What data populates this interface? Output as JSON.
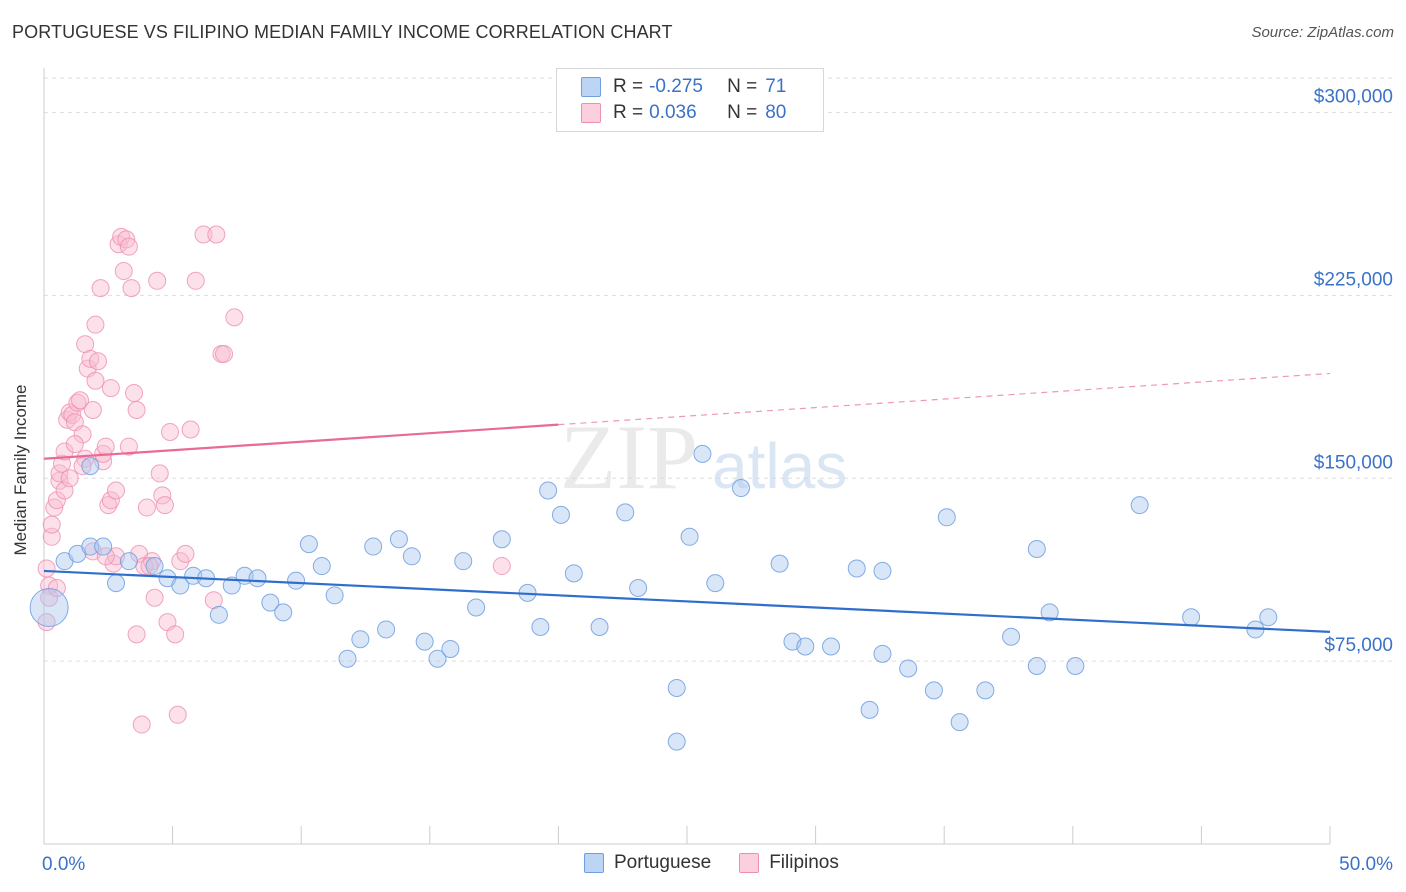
{
  "title": "PORTUGUESE VS FILIPINO MEDIAN FAMILY INCOME CORRELATION CHART",
  "source": "Source: ZipAtlas.com",
  "watermark": {
    "zip": "ZIP",
    "atlas": "atlas"
  },
  "colors": {
    "portuguese_fill": "#a8c8f0",
    "portuguese_stroke": "#6f9fe0",
    "portuguese_line": "#2f6fcc",
    "filipino_fill": "#f8bcd0",
    "filipino_stroke": "#ee8fb0",
    "filipino_line": "#e86a95",
    "axis_label": "#3a72c8",
    "grid": "#dddddd"
  },
  "legend": {
    "portuguese": {
      "r_label": "R =",
      "r_value": "-0.275",
      "n_label": "N =",
      "n_value": "71"
    },
    "filipino": {
      "r_label": "R =",
      "r_value": "0.036",
      "n_label": "N =",
      "n_value": "80"
    }
  },
  "chart_data": {
    "type": "scatter",
    "title": "PORTUGUESE VS FILIPINO MEDIAN FAMILY INCOME CORRELATION CHART",
    "xlabel": "",
    "ylabel": "Median Family Income",
    "xlim": [
      0,
      50
    ],
    "ylim": [
      0,
      315000
    ],
    "x_tick_labels": [
      "0.0%",
      "50.0%"
    ],
    "x_minor_ticks": [
      5,
      10,
      15,
      20,
      25,
      30,
      35,
      40,
      45
    ],
    "y_ticks": [
      {
        "value": 75000,
        "label": "$75,000"
      },
      {
        "value": 150000,
        "label": "$150,000"
      },
      {
        "value": 225000,
        "label": "$225,000"
      },
      {
        "value": 300000,
        "label": "$300,000"
      }
    ],
    "legend_position": "top-center",
    "series": [
      {
        "name": "Portuguese",
        "trend": {
          "x0": 0,
          "y0": 112000,
          "x1": 50,
          "y1": 87000,
          "dashed_from": null
        },
        "points": [
          [
            0.2,
            97000
          ],
          [
            0.8,
            116000
          ],
          [
            1.3,
            119000
          ],
          [
            1.8,
            122000
          ],
          [
            2.3,
            122000
          ],
          [
            2.8,
            107000
          ],
          [
            3.3,
            116000
          ],
          [
            4.3,
            114000
          ],
          [
            4.8,
            109000
          ],
          [
            5.3,
            106000
          ],
          [
            5.8,
            110000
          ],
          [
            6.3,
            109000
          ],
          [
            6.8,
            94000
          ],
          [
            7.3,
            106000
          ],
          [
            7.8,
            110000
          ],
          [
            8.3,
            109000
          ],
          [
            8.8,
            99000
          ],
          [
            9.3,
            95000
          ],
          [
            9.8,
            108000
          ],
          [
            10.3,
            123000
          ],
          [
            10.8,
            114000
          ],
          [
            11.3,
            102000
          ],
          [
            11.8,
            76000
          ],
          [
            12.3,
            84000
          ],
          [
            12.8,
            122000
          ],
          [
            13.3,
            88000
          ],
          [
            13.8,
            125000
          ],
          [
            14.3,
            118000
          ],
          [
            14.8,
            83000
          ],
          [
            15.3,
            76000
          ],
          [
            15.8,
            80000
          ],
          [
            16.3,
            116000
          ],
          [
            16.8,
            97000
          ],
          [
            17.8,
            125000
          ],
          [
            18.8,
            103000
          ],
          [
            19.3,
            89000
          ],
          [
            19.6,
            145000
          ],
          [
            20.1,
            135000
          ],
          [
            20.6,
            111000
          ],
          [
            21.6,
            89000
          ],
          [
            22.6,
            136000
          ],
          [
            23.1,
            105000
          ],
          [
            24.6,
            64000
          ],
          [
            24.6,
            42000
          ],
          [
            25.1,
            126000
          ],
          [
            25.6,
            160000
          ],
          [
            26.1,
            107000
          ],
          [
            27.1,
            146000
          ],
          [
            28.6,
            115000
          ],
          [
            29.1,
            83000
          ],
          [
            29.6,
            81000
          ],
          [
            30.6,
            81000
          ],
          [
            31.6,
            113000
          ],
          [
            32.1,
            55000
          ],
          [
            32.6,
            78000
          ],
          [
            32.6,
            112000
          ],
          [
            33.6,
            72000
          ],
          [
            34.6,
            63000
          ],
          [
            35.1,
            134000
          ],
          [
            35.6,
            50000
          ],
          [
            36.6,
            63000
          ],
          [
            37.6,
            85000
          ],
          [
            38.6,
            73000
          ],
          [
            38.6,
            121000
          ],
          [
            39.1,
            95000
          ],
          [
            40.1,
            73000
          ],
          [
            42.6,
            139000
          ],
          [
            44.6,
            93000
          ],
          [
            47.1,
            88000
          ],
          [
            47.6,
            93000
          ],
          [
            1.8,
            155000
          ]
        ]
      },
      {
        "name": "Filipinos",
        "trend": {
          "x0": 0,
          "y0": 158000,
          "x1": 50,
          "y1": 193000,
          "dashed_from": 20
        },
        "points": [
          [
            0.1,
            113000
          ],
          [
            0.2,
            106000
          ],
          [
            0.2,
            101000
          ],
          [
            0.1,
            91000
          ],
          [
            0.3,
            126000
          ],
          [
            0.3,
            131000
          ],
          [
            0.4,
            138000
          ],
          [
            0.5,
            141000
          ],
          [
            0.6,
            149000
          ],
          [
            0.6,
            152000
          ],
          [
            0.7,
            156000
          ],
          [
            0.8,
            161000
          ],
          [
            0.9,
            174000
          ],
          [
            1.0,
            177000
          ],
          [
            1.1,
            176000
          ],
          [
            1.2,
            173000
          ],
          [
            1.3,
            181000
          ],
          [
            1.4,
            182000
          ],
          [
            1.5,
            168000
          ],
          [
            1.6,
            158000
          ],
          [
            1.6,
            205000
          ],
          [
            1.7,
            195000
          ],
          [
            1.8,
            199000
          ],
          [
            1.9,
            178000
          ],
          [
            2.0,
            190000
          ],
          [
            2.0,
            213000
          ],
          [
            2.1,
            198000
          ],
          [
            2.2,
            228000
          ],
          [
            2.3,
            157000
          ],
          [
            2.3,
            160000
          ],
          [
            2.4,
            163000
          ],
          [
            2.5,
            139000
          ],
          [
            2.6,
            141000
          ],
          [
            2.7,
            115000
          ],
          [
            2.8,
            118000
          ],
          [
            2.8,
            145000
          ],
          [
            2.9,
            246000
          ],
          [
            3.0,
            249000
          ],
          [
            3.1,
            235000
          ],
          [
            3.2,
            248000
          ],
          [
            3.3,
            245000
          ],
          [
            3.4,
            228000
          ],
          [
            3.5,
            185000
          ],
          [
            3.6,
            178000
          ],
          [
            3.6,
            86000
          ],
          [
            3.7,
            119000
          ],
          [
            3.8,
            49000
          ],
          [
            3.9,
            114000
          ],
          [
            4.0,
            138000
          ],
          [
            4.2,
            116000
          ],
          [
            4.3,
            101000
          ],
          [
            4.4,
            231000
          ],
          [
            4.5,
            152000
          ],
          [
            4.6,
            143000
          ],
          [
            4.7,
            139000
          ],
          [
            4.8,
            91000
          ],
          [
            4.9,
            169000
          ],
          [
            5.1,
            86000
          ],
          [
            5.2,
            53000
          ],
          [
            5.3,
            116000
          ],
          [
            5.5,
            119000
          ],
          [
            5.7,
            170000
          ],
          [
            5.9,
            231000
          ],
          [
            6.2,
            250000
          ],
          [
            6.6,
            100000
          ],
          [
            6.7,
            250000
          ],
          [
            6.9,
            201000
          ],
          [
            7.0,
            201000
          ],
          [
            7.4,
            216000
          ],
          [
            1.2,
            164000
          ],
          [
            0.8,
            145000
          ],
          [
            1.5,
            155000
          ],
          [
            2.6,
            187000
          ],
          [
            3.3,
            163000
          ],
          [
            4.1,
            114000
          ],
          [
            0.5,
            105000
          ],
          [
            1.9,
            120000
          ],
          [
            2.4,
            118000
          ],
          [
            17.8,
            114000
          ],
          [
            1.0,
            150000
          ]
        ]
      }
    ]
  },
  "bottom_legend": {
    "portuguese": "Portuguese",
    "filipino": "Filipinos"
  }
}
